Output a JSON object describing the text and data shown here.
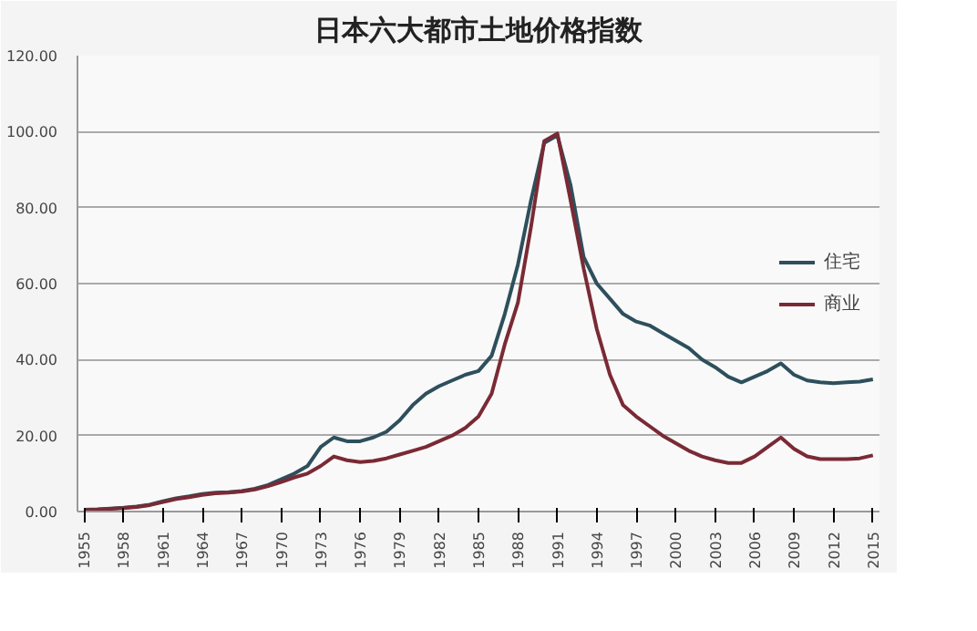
{
  "chart_data": {
    "type": "line",
    "title": "日本六大都市土地价格指数",
    "x": [
      1955,
      1956,
      1957,
      1958,
      1959,
      1960,
      1961,
      1962,
      1963,
      1964,
      1965,
      1966,
      1967,
      1968,
      1969,
      1970,
      1971,
      1972,
      1973,
      1974,
      1975,
      1976,
      1977,
      1978,
      1979,
      1980,
      1981,
      1982,
      1983,
      1984,
      1985,
      1986,
      1987,
      1988,
      1989,
      1990,
      1991,
      1992,
      1993,
      1994,
      1995,
      1996,
      1997,
      1998,
      1999,
      2000,
      2001,
      2002,
      2003,
      2004,
      2005,
      2006,
      2007,
      2008,
      2009,
      2010,
      2011,
      2012,
      2013,
      2014,
      2015
    ],
    "series": [
      {
        "name": "住宅",
        "color": "#2e4f5c",
        "values": [
          0.5,
          0.6,
          0.8,
          1.0,
          1.3,
          1.8,
          2.7,
          3.5,
          4.0,
          4.6,
          5.0,
          5.1,
          5.4,
          6.0,
          7.0,
          8.5,
          10,
          12,
          17,
          19.5,
          18.5,
          18.5,
          19.5,
          21,
          24,
          28,
          31,
          33,
          34.5,
          36,
          37,
          41,
          52,
          65,
          82,
          97,
          99,
          86,
          67,
          60,
          56,
          52,
          50,
          49,
          47,
          45,
          43,
          40,
          38,
          35.5,
          34,
          35.5,
          37,
          39,
          36,
          34.5,
          34,
          33.8,
          34,
          34.2,
          34.8
        ]
      },
      {
        "name": "商业",
        "color": "#7a2a35",
        "values": [
          0.4,
          0.5,
          0.7,
          0.9,
          1.2,
          1.7,
          2.5,
          3.3,
          3.8,
          4.4,
          4.8,
          5.0,
          5.3,
          5.8,
          6.7,
          7.8,
          9,
          10,
          12,
          14.5,
          13.5,
          13,
          13.3,
          14,
          15,
          16,
          17,
          18.5,
          20,
          22,
          25,
          31,
          44,
          55,
          75,
          97.5,
          99.5,
          82,
          64,
          48,
          36,
          28,
          25,
          22.5,
          20,
          18,
          16,
          14.5,
          13.5,
          12.8,
          12.8,
          14.5,
          17,
          19.5,
          16.5,
          14.5,
          13.8,
          13.8,
          13.8,
          14,
          14.8
        ]
      }
    ],
    "xlim": [
      1954.5,
      2015.5
    ],
    "xticks": [
      1955,
      1958,
      1961,
      1964,
      1967,
      1970,
      1973,
      1976,
      1979,
      1982,
      1985,
      1988,
      1991,
      1994,
      1997,
      2000,
      2003,
      2006,
      2009,
      2012,
      2015
    ],
    "ylim": [
      0,
      120
    ],
    "yticks": [
      {
        "value": 0,
        "label": "0.00"
      },
      {
        "value": 20,
        "label": "20.00"
      },
      {
        "value": 40,
        "label": "40.00"
      },
      {
        "value": 60,
        "label": "60.00"
      },
      {
        "value": 80,
        "label": "80.00"
      },
      {
        "value": 100,
        "label": "100.00"
      },
      {
        "value": 120,
        "label": "120.00"
      }
    ],
    "grid": "y",
    "legend": "right",
    "marker": "none",
    "line_style": "solid"
  }
}
